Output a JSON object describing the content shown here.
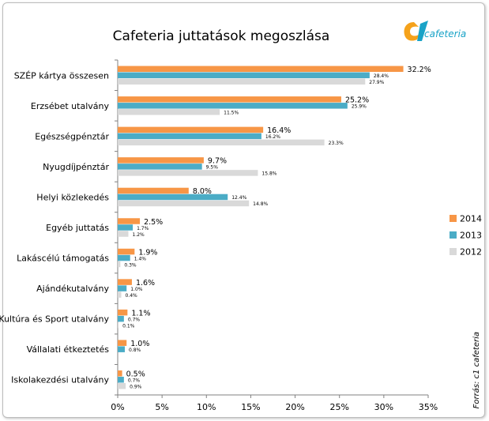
{
  "chart_data": {
    "type": "bar",
    "orientation": "horizontal",
    "title": "Cafeteria juttatások megoszlása",
    "categories": [
      "SZÉP kártya összesen",
      "Erzsébet utalvány",
      "Egészségpénztár",
      "Nyugdíjpénztár",
      "Helyi közlekedés",
      "Egyéb juttatás",
      "Lakáscélú támogatás",
      "Ajándékutalvány",
      "Kultúra és Sport utalvány",
      "Vállalati étkeztetés",
      "Iskolakezdési utalvány"
    ],
    "series": [
      {
        "name": "2014",
        "color": "#f79646",
        "values": [
          32.2,
          25.2,
          16.4,
          9.7,
          8.0,
          2.5,
          1.9,
          1.6,
          1.1,
          1.0,
          0.5
        ],
        "labels": [
          "32.2%",
          "25.2%",
          "16.4%",
          "9.7%",
          "8.0%",
          "2.5%",
          "1.9%",
          "1.6%",
          "1.1%",
          "1.0%",
          "0.5%"
        ]
      },
      {
        "name": "2013",
        "color": "#4bacc6",
        "values": [
          28.4,
          25.9,
          16.2,
          9.5,
          12.4,
          1.7,
          1.4,
          1.0,
          0.7,
          0.8,
          0.7
        ],
        "labels": [
          "28.4%",
          "25.9%",
          "16.2%",
          "9.5%",
          "12.4%",
          "1.7%",
          "1.4%",
          "1.0%",
          "0.7%",
          "0.8%",
          "0.7%"
        ]
      },
      {
        "name": "2012",
        "color": "#d9d9d9",
        "values": [
          27.9,
          11.5,
          23.3,
          15.8,
          14.8,
          1.2,
          0.3,
          0.4,
          0.1,
          null,
          0.9
        ],
        "labels": [
          "27.9%",
          "11.5%",
          "23.3%",
          "15.8%",
          "14.8%",
          "1.2%",
          "0.3%",
          "0.4%",
          "0.1%",
          "",
          "0.9%"
        ]
      }
    ],
    "x_ticks": [
      "0%",
      "5%",
      "10%",
      "15%",
      "20%",
      "25%",
      "30%",
      "35%"
    ],
    "xlim": [
      0,
      35
    ],
    "grid": false,
    "legend_position": "right"
  },
  "logo": {
    "text": "cafeteria"
  },
  "source_note": "Forrás: c1 cafeteria"
}
